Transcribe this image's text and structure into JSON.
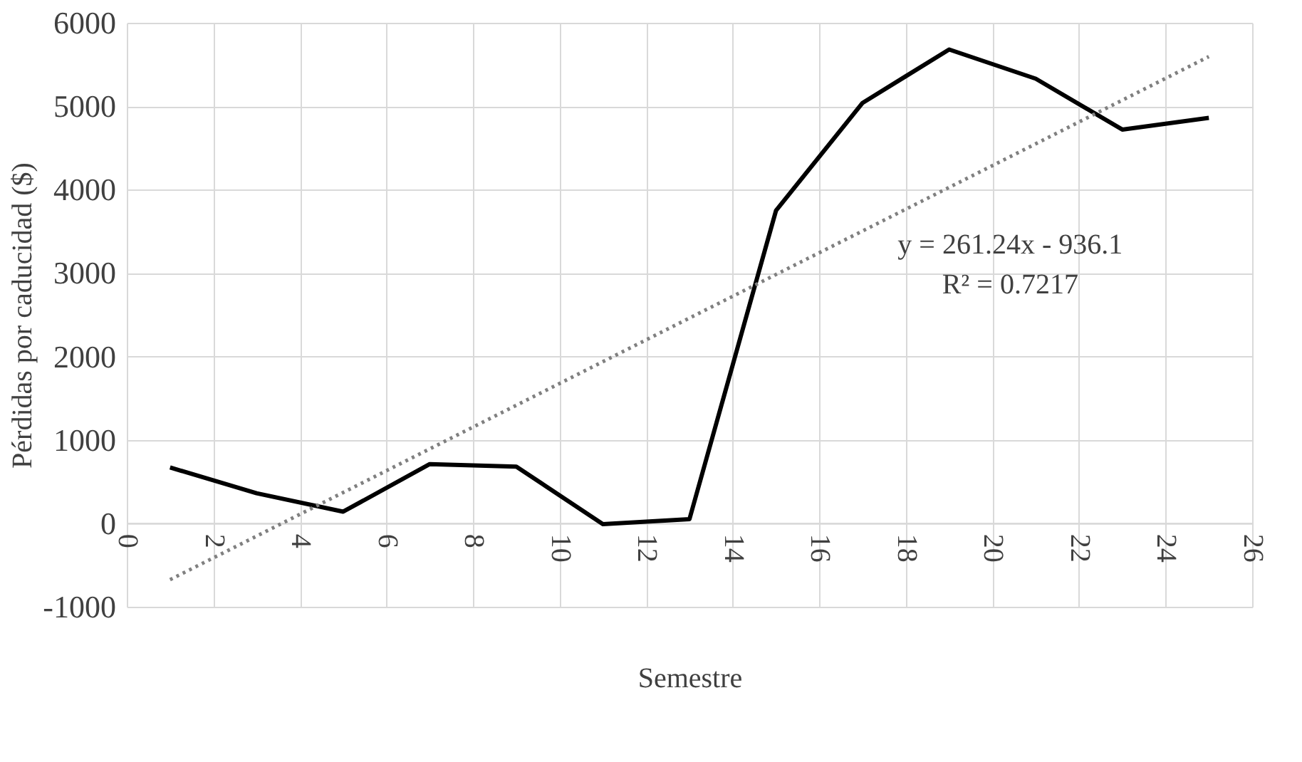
{
  "chart_data": {
    "type": "line",
    "xlabel": "Semestre",
    "ylabel": "Pérdidas por caducidad ($)",
    "x": [
      1,
      3,
      5,
      7,
      9,
      11,
      13,
      15,
      17,
      19,
      21,
      23,
      25
    ],
    "series": [
      {
        "color": "#000000",
        "values": [
          670,
          360,
          140,
          710,
          680,
          -10,
          50,
          3750,
          5040,
          5680,
          5330,
          4720,
          4860
        ],
        "line_style": "solid"
      },
      {
        "type": "line",
        "x": [
          1,
          25
        ],
        "color": "#808080",
        "values": [
          -675,
          5595
        ],
        "line_style": "dotted"
      }
    ],
    "annotations": [
      "y = 261.24x - 936.1",
      "R² = 0.7217"
    ],
    "xlim": [
      0,
      26
    ],
    "xticks": [
      0,
      2,
      4,
      6,
      8,
      10,
      12,
      14,
      16,
      18,
      20,
      22,
      24,
      26
    ],
    "ylim": [
      -1000,
      6000
    ],
    "yticks": [
      -1000,
      0,
      1000,
      2000,
      3000,
      4000,
      5000,
      6000
    ],
    "grid": true,
    "marker": "none"
  }
}
